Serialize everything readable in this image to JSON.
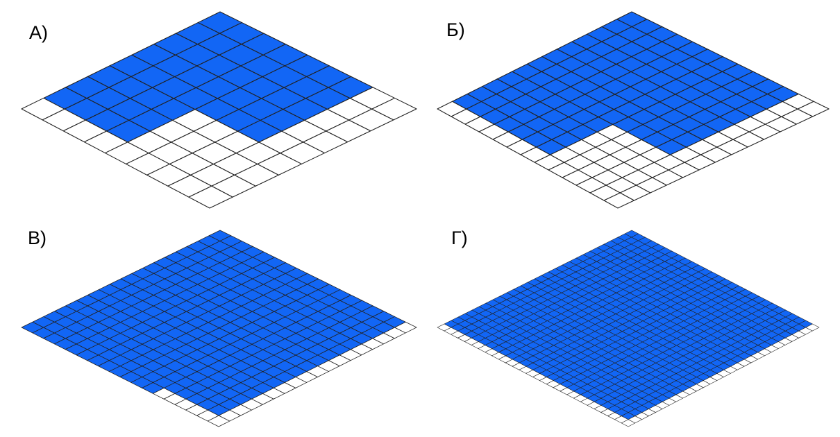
{
  "colors": {
    "filled": "#1266f5",
    "empty": "#ffffff",
    "grid_line": "#222222"
  },
  "panels": [
    {
      "label": "А)",
      "grid_cols": 9,
      "grid_rows": 9,
      "empty_cells_description_units": "cells"
    },
    {
      "label": "Б)",
      "grid_cols": 13,
      "grid_rows": 13
    },
    {
      "label": "В)",
      "grid_cols": 18,
      "grid_rows": 18
    },
    {
      "label": "Г)",
      "grid_cols": 28,
      "grid_rows": 28
    }
  ]
}
